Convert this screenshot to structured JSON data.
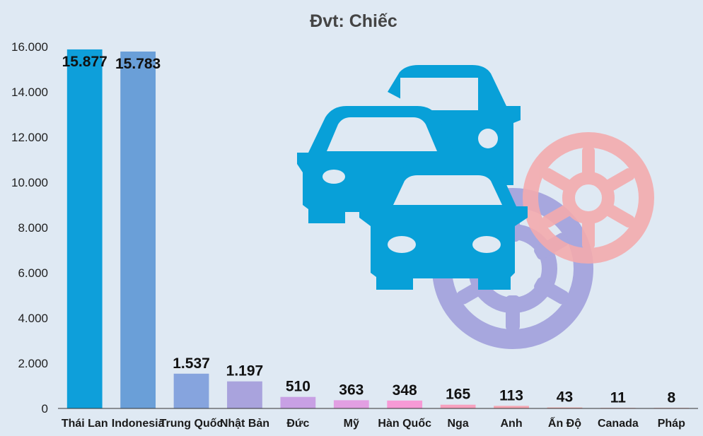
{
  "chart_data": {
    "type": "bar",
    "title": "Đvt: Chiếc",
    "xlabel": "",
    "ylabel": "",
    "ylim": [
      0,
      16000
    ],
    "yticks": [
      0,
      2000,
      4000,
      6000,
      8000,
      10000,
      12000,
      14000,
      16000
    ],
    "ytick_labels": [
      "0",
      "2.000",
      "4.000",
      "6.000",
      "8.000",
      "10.000",
      "12.000",
      "14.000",
      "16.000"
    ],
    "grid": false,
    "categories": [
      "Thái Lan",
      "Indonesia",
      "Trung Quốc",
      "Nhật Bản",
      "Đức",
      "Mỹ",
      "Hàn Quốc",
      "Nga",
      "Anh",
      "Ấn Độ",
      "Canada",
      "Pháp"
    ],
    "values": [
      15877,
      15783,
      1537,
      1197,
      510,
      363,
      348,
      165,
      113,
      43,
      11,
      8
    ],
    "data_labels": [
      "15.877",
      "15.783",
      "1.537",
      "1.197",
      "510",
      "363",
      "348",
      "165",
      "113",
      "43",
      "11",
      "8"
    ],
    "colors": [
      "#0e9fda",
      "#6a9fd8",
      "#86a4de",
      "#a9a3dd",
      "#c8a0e4",
      "#e29fe2",
      "#f79ad6",
      "#f8a1bf",
      "#f6a6b2",
      "#f3a9a9",
      "#f3a9a9",
      "#f3a9a9"
    ],
    "illustration": {
      "icons": [
        "car-icon",
        "car-icon",
        "car-icon",
        "wheel-icon",
        "wheel-icon"
      ],
      "car_color": "#08a0d8",
      "wheel_colors": [
        "#a7a7de",
        "#f4abae"
      ]
    }
  }
}
